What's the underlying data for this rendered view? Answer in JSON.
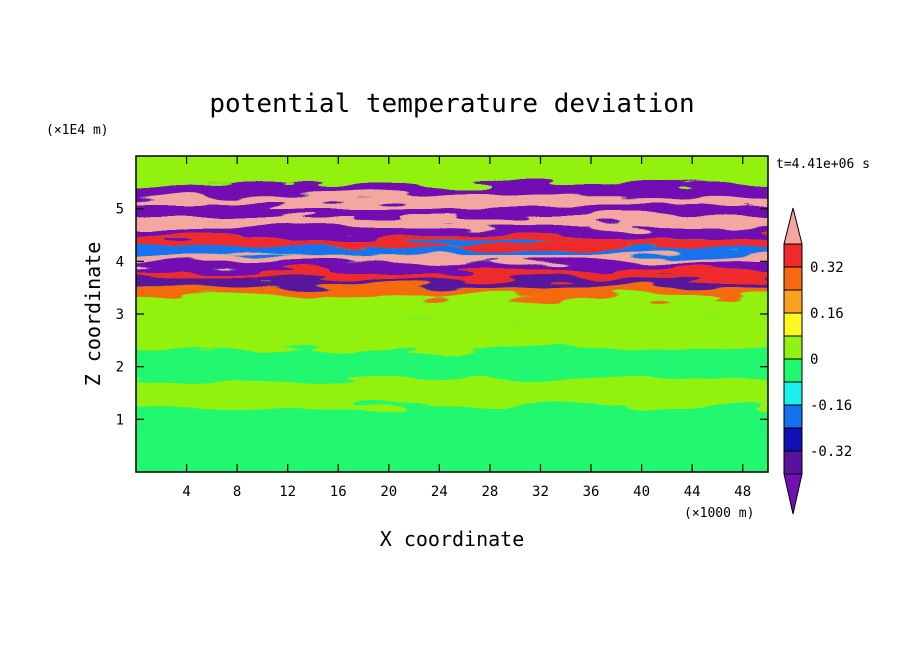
{
  "chart_data": {
    "type": "heatmap",
    "title": "potential temperature deviation",
    "xlabel": "X coordinate",
    "ylabel": "Z coordinate",
    "x_unit": "(×1000 m)",
    "y_unit": "(×1E4 m)",
    "time_label": "t=4.41e+06 s",
    "xlim": [
      0,
      50
    ],
    "ylim": [
      0,
      6
    ],
    "x_ticks": [
      "4",
      "8",
      "12",
      "16",
      "20",
      "24",
      "28",
      "32",
      "36",
      "40",
      "44",
      "48"
    ],
    "y_ticks": [
      "1",
      "2",
      "3",
      "4",
      "5"
    ],
    "colorbar": {
      "levels_labeled": [
        "0.32",
        "0.16",
        "0",
        "-0.16",
        "-0.32"
      ],
      "colors": [
        "#f4a6a0",
        "#ee2a2a",
        "#f56a10",
        "#f8a21d",
        "#fef720",
        "#92f211",
        "#22f770",
        "#1cf0ec",
        "#1472ee",
        "#1110b4",
        "#59129c",
        "#7110b2"
      ]
    },
    "bands": [
      {
        "y": 0.3,
        "value": 0.0
      },
      {
        "y": 0.95,
        "value": -0.05
      },
      {
        "y": 1.5,
        "value": 0.02
      },
      {
        "y": 2.0,
        "value": -0.03
      },
      {
        "y": 2.6,
        "value": 0.03
      },
      {
        "y": 3.2,
        "value": 0.05
      },
      {
        "y": 3.45,
        "value": 0.3
      },
      {
        "y": 3.6,
        "value": -0.36
      },
      {
        "y": 3.75,
        "value": 0.4
      },
      {
        "y": 3.9,
        "value": -0.4
      },
      {
        "y": 4.05,
        "value": 0.45
      },
      {
        "y": 4.2,
        "value": -0.2
      },
      {
        "y": 4.35,
        "value": 0.4
      },
      {
        "y": 4.55,
        "value": -0.4
      },
      {
        "y": 4.75,
        "value": 0.45
      },
      {
        "y": 4.95,
        "value": -0.4
      },
      {
        "y": 5.15,
        "value": 0.45
      },
      {
        "y": 5.3,
        "value": -0.4
      },
      {
        "y": 5.6,
        "value": 0.02
      }
    ]
  }
}
